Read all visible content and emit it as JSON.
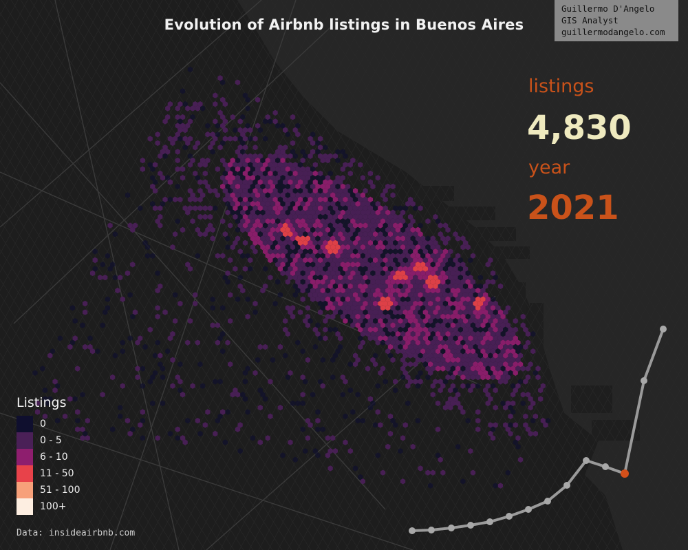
{
  "title": "Evolution of Airbnb listings in Buenos Aires",
  "credit": {
    "name": "Guillermo D'Angelo",
    "role": "GIS Analyst",
    "site": "guillermodangelo.com"
  },
  "stats": {
    "listings_label": "listings",
    "listings_value": "4,830",
    "year_label": "year",
    "year_value": "2021"
  },
  "legend": {
    "title": "Listings",
    "items": [
      {
        "label": "0",
        "color": "#0f0f2e"
      },
      {
        "label": "0 - 5",
        "color": "#4a2057"
      },
      {
        "label": "6 - 10",
        "color": "#8e1e6e"
      },
      {
        "label": "11 - 50",
        "color": "#e8424a"
      },
      {
        "label": "51 - 100",
        "color": "#f7a07a"
      },
      {
        "label": "100+",
        "color": "#fdeee1"
      }
    ]
  },
  "source": "Data: insideairbnb.com",
  "colors": {
    "background": "#1d1d1d",
    "water": "#2b2b2b",
    "accent": "#c9521a",
    "trend_line": "#9a9a9a"
  }
}
